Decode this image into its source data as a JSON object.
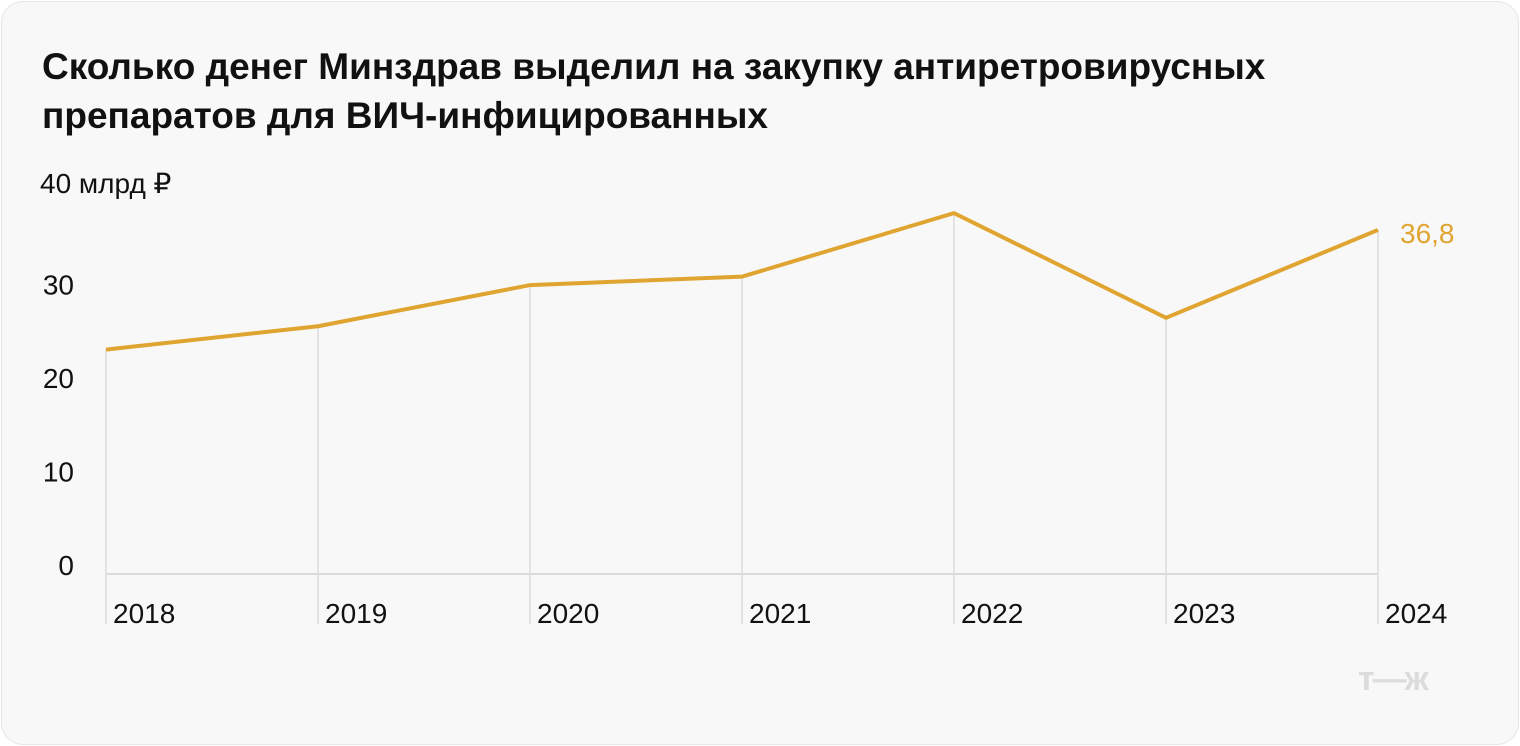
{
  "chart_data": {
    "type": "line",
    "title": "Сколько денег Минздрав выделил на закупку антиретровирусных препаратов для ВИЧ-инфицированных",
    "categories": [
      "2018",
      "2019",
      "2020",
      "2021",
      "2022",
      "2023",
      "2024"
    ],
    "series": [
      {
        "values": [
          24.0,
          26.5,
          30.9,
          31.8,
          38.6,
          27.4,
          36.8
        ],
        "color": "#e0a431"
      }
    ],
    "yticks": [
      "0",
      "10",
      "20",
      "30",
      "40 млрд ₽"
    ],
    "ylim": [
      0,
      40
    ],
    "data_labels": [
      {
        "category": "2024",
        "text": "36,8"
      }
    ],
    "grid": "vertical lines at each category",
    "unit": "млрд ₽"
  },
  "logo": "т—ж"
}
